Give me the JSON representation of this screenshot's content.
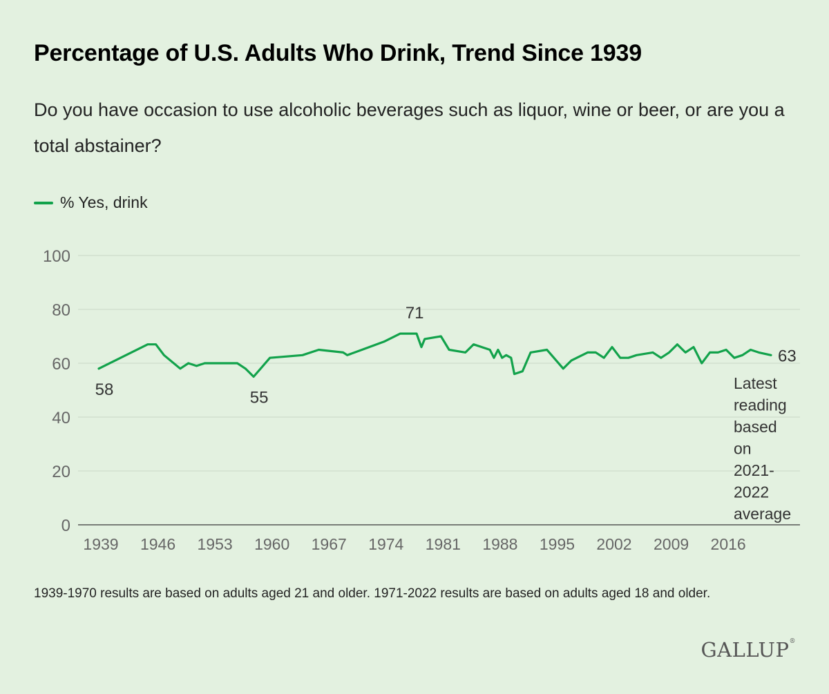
{
  "title": "Percentage of U.S. Adults Who Drink, Trend Since 1939",
  "subtitle": "Do you have occasion to use alcoholic beverages such as liquor, wine or beer, or are you a total abstainer?",
  "footnote": "1939-1970 results are based on adults aged 21 and older. 1971-2022 results are based on adults aged 18 and older.",
  "logo": "GALLUP",
  "colors": {
    "line": "#12a24b",
    "background": "#e3f1e0",
    "grid": "#c9d8c6",
    "axis": "#555555",
    "label": "#333333"
  },
  "chart_data": {
    "type": "line",
    "series": [
      {
        "name": "% Yes, drink",
        "x": [
          1939,
          1945,
          1946,
          1947,
          1949,
          1950,
          1951,
          1952,
          1956,
          1957,
          1958,
          1960,
          1964,
          1966,
          1969,
          1969.5,
          1974,
          1976,
          1977,
          1978,
          1978.6,
          1979,
          1981,
          1982,
          1984,
          1985,
          1987,
          1987.5,
          1988,
          1988.5,
          1989,
          1989.6,
          1990,
          1991,
          1992,
          1994,
          1996,
          1997,
          1999,
          2000,
          2001,
          2002,
          2003,
          2004,
          2005,
          2007,
          2008,
          2009,
          2010,
          2011,
          2012,
          2013,
          2014,
          2015,
          2016,
          2017,
          2018,
          2019,
          2020,
          2021.5
        ],
        "values": [
          58,
          67,
          67,
          63,
          58,
          60,
          59,
          60,
          60,
          58,
          55,
          62,
          63,
          65,
          64,
          63,
          68,
          71,
          71,
          71,
          66,
          69,
          70,
          65,
          64,
          67,
          65,
          62,
          65,
          62,
          63,
          62,
          56,
          57,
          64,
          65,
          58,
          61,
          64,
          64,
          62,
          66,
          62,
          62,
          63,
          64,
          62,
          64,
          67,
          64,
          66,
          60,
          64,
          64,
          65,
          62,
          63,
          65,
          64,
          63
        ]
      }
    ],
    "annotations": [
      {
        "text": "58",
        "x": 1939,
        "y": 58,
        "position": "below"
      },
      {
        "text": "55",
        "x": 1958,
        "y": 55,
        "position": "below"
      },
      {
        "text": "71",
        "x": 1977,
        "y": 71,
        "position": "above"
      },
      {
        "text": "63",
        "x": 2021.5,
        "y": 63,
        "position": "right"
      }
    ],
    "note": "Latest reading based on 2021-2022 average",
    "xlabel": "",
    "ylabel": "",
    "xticks": [
      1939,
      1946,
      1953,
      1960,
      1967,
      1974,
      1981,
      1988,
      1995,
      2002,
      2009,
      2016
    ],
    "yticks": [
      0,
      20,
      40,
      60,
      80,
      100
    ],
    "xlim": [
      1937,
      2028
    ],
    "ylim": [
      0,
      100
    ],
    "grid": true,
    "legend": "top-left"
  }
}
